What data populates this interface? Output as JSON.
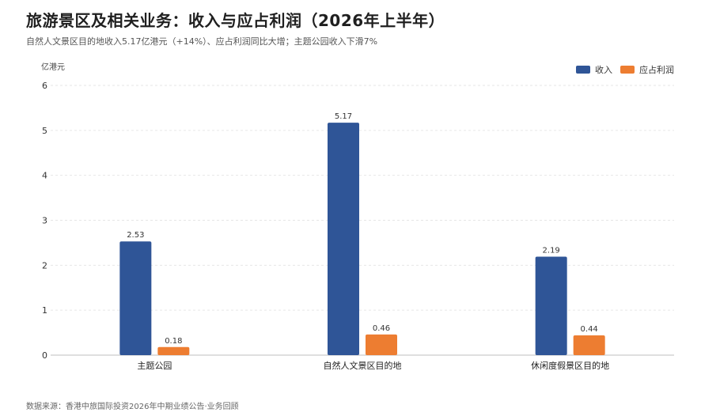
{
  "header": {
    "title": "旅游景区及相关业务：收入与应占利润（2026年上半年）",
    "subtitle": "自然人文景区目的地收入5.17亿港元（+14%）、应占利润同比大增；主题公园收入下滑7%"
  },
  "footer": {
    "source": "数据来源：香港中旅国际投资2026年中期业绩公告·业务回顾"
  },
  "colors": {
    "revenue": "#2f5597",
    "profit": "#ed7d31",
    "grid": "#e6e6e6",
    "axis": "#bfbfbf"
  },
  "chart_data": {
    "type": "bar",
    "unit_label": "亿港元",
    "categories": [
      "主题公园",
      "自然人文景区目的地",
      "休闲度假景区目的地"
    ],
    "series": [
      {
        "name": "收入",
        "values": [
          2.53,
          5.17,
          2.19
        ],
        "labels": [
          "2.53",
          "5.17",
          "2.19"
        ]
      },
      {
        "name": "应占利润",
        "values": [
          0.18,
          0.46,
          0.44
        ],
        "labels": [
          "0.18",
          "0.46",
          "0.44"
        ]
      }
    ],
    "ylim": [
      0,
      6
    ],
    "yticks": [
      0,
      1,
      2,
      3,
      4,
      5,
      6
    ],
    "grid": true,
    "legend_position": "top-right"
  }
}
